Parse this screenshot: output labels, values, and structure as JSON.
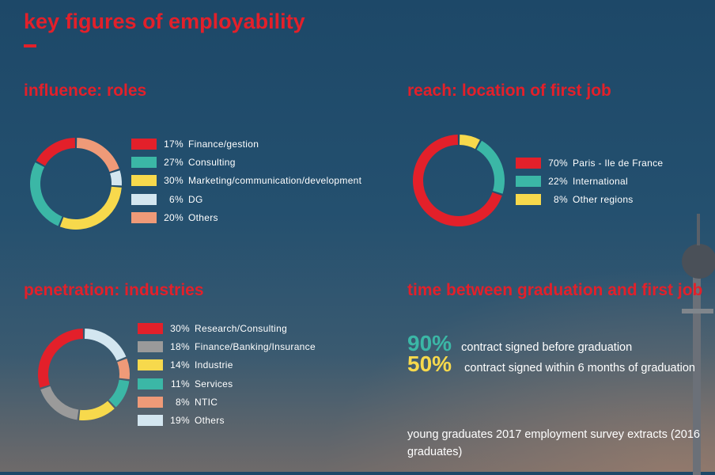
{
  "title": "key figures of employability",
  "colors": {
    "accent": "#e3202a",
    "red": "#e3202a",
    "teal": "#3bb7a6",
    "yellow": "#f7d94c",
    "lightblue": "#d3e6f0",
    "salmon": "#ef9a78",
    "grey": "#9a9a9a",
    "stat90": "#3bb7a6",
    "stat50": "#f7d94c"
  },
  "chart_data": [
    {
      "type": "pie",
      "title": "influence: roles",
      "order": "clockwise from top",
      "slices": [
        {
          "label": "Others",
          "pct": "20%",
          "value": 20,
          "color": "#ef9a78",
          "order": 0
        },
        {
          "label": "DG",
          "pct": "6%",
          "value": 6,
          "color": "#d3e6f0",
          "order": 1
        },
        {
          "label": "Marketing/communication/development",
          "pct": "30%",
          "value": 30,
          "color": "#f7d94c",
          "order": 2
        },
        {
          "label": "Consulting",
          "pct": "27%",
          "value": 27,
          "color": "#3bb7a6",
          "order": 3
        },
        {
          "label": "Finance/gestion",
          "pct": "17%",
          "value": 17,
          "color": "#e3202a",
          "order": 4
        }
      ],
      "legend_order": [
        4,
        3,
        2,
        1,
        0
      ]
    },
    {
      "type": "pie",
      "title": "reach: location of first job",
      "slices": [
        {
          "label": "Other regions",
          "pct": "8%",
          "value": 8,
          "color": "#f7d94c"
        },
        {
          "label": "International",
          "pct": "22%",
          "value": 22,
          "color": "#3bb7a6"
        },
        {
          "label": "Paris - Ile de France",
          "pct": "70%",
          "value": 70,
          "color": "#e3202a"
        }
      ],
      "legend_order": [
        2,
        1,
        0
      ]
    },
    {
      "type": "pie",
      "title": "penetration: industries",
      "slices": [
        {
          "label": "Others",
          "pct": "19%",
          "value": 19,
          "color": "#d3e6f0"
        },
        {
          "label": "NTIC",
          "pct": "8%",
          "value": 8,
          "color": "#ef9a78"
        },
        {
          "label": "Services",
          "pct": "11%",
          "value": 11,
          "color": "#3bb7a6"
        },
        {
          "label": "Industrie",
          "pct": "14%",
          "value": 14,
          "color": "#f7d94c"
        },
        {
          "label": "Finance/Banking/Insurance",
          "pct": "18%",
          "value": 18,
          "color": "#9a9a9a"
        },
        {
          "label": "Research/Consulting",
          "pct": "30%",
          "value": 30,
          "color": "#e3202a"
        }
      ],
      "legend_order": [
        5,
        4,
        3,
        2,
        1,
        0
      ]
    }
  ],
  "time": {
    "title": "time between graduation and first job",
    "stat1_value": "90%",
    "stat1_text": "contract signed before graduation",
    "stat2_value": "50%",
    "stat2_text": "contract signed within 6 months of graduation"
  },
  "note": "young graduates 2017 employment survey extracts (2016 graduates)"
}
